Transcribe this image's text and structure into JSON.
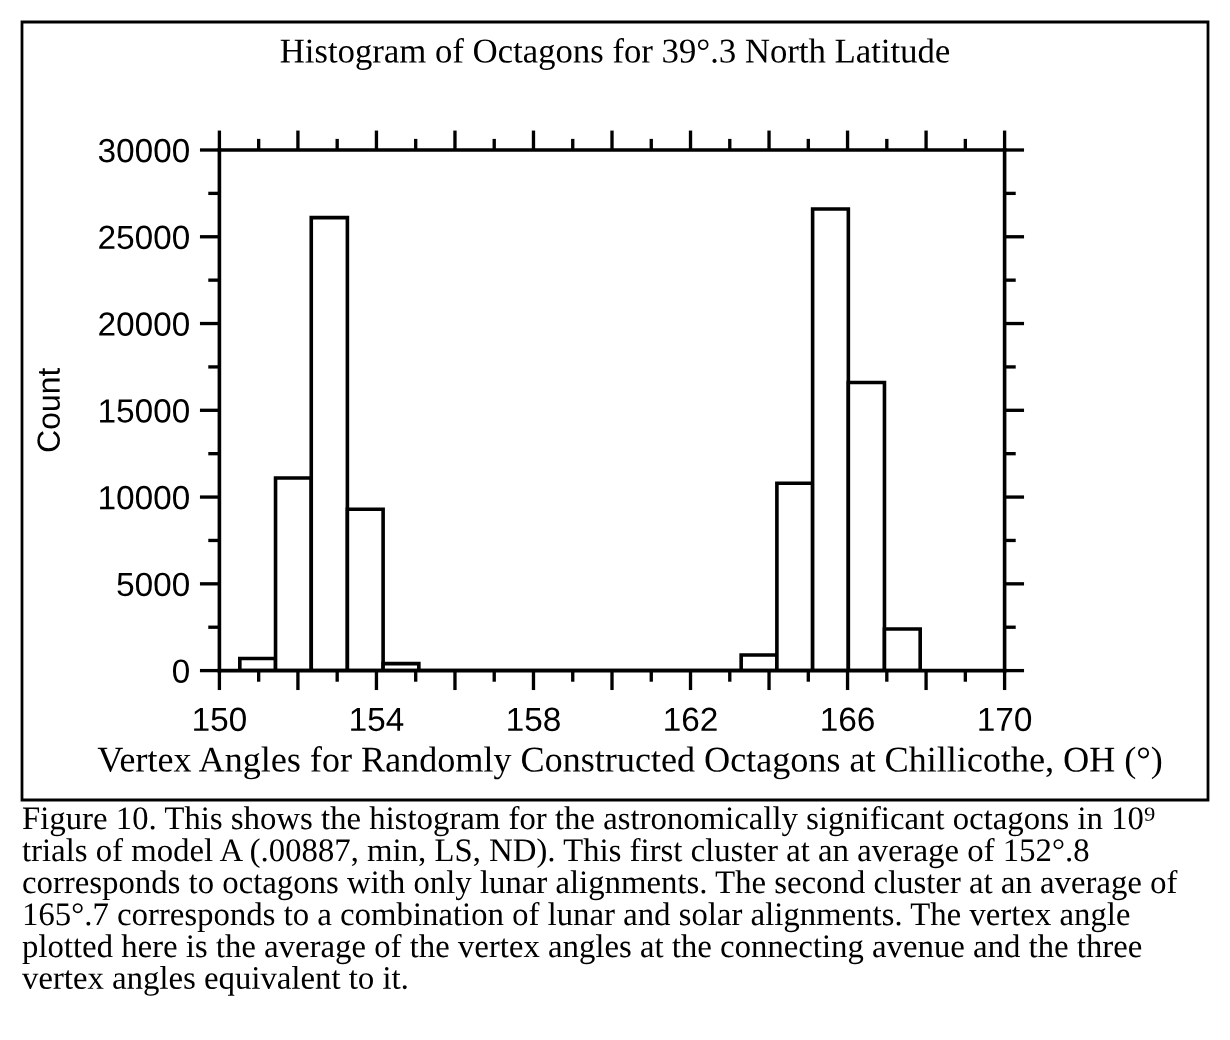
{
  "chart_data": {
    "type": "histogram",
    "title": "Histogram of Octagons for 39°.3 North Latitude",
    "xlabel": "Vertex Angles for Randomly Constructed Octagons at Chillicothe, OH (°)",
    "ylabel": "Count",
    "bins": [
      150.52,
      151.43,
      152.34,
      153.26,
      154.17,
      155.08,
      155.99,
      156.9,
      157.82,
      158.73,
      159.64,
      160.55,
      161.46,
      162.38,
      163.29,
      164.2,
      165.11,
      166.02,
      166.94,
      167.85
    ],
    "values": [
      700,
      11100,
      26100,
      9300,
      400,
      0,
      0,
      0,
      0,
      0,
      0,
      0,
      0,
      0,
      900,
      10800,
      26600,
      16600,
      2400
    ],
    "color": "#ffffff",
    "xlim": [
      150,
      170
    ],
    "xticks": [
      150,
      {
        "value": 152,
        "label": null
      },
      154,
      {
        "value": 156,
        "label": null
      },
      158,
      {
        "value": 160,
        "label": null
      },
      162,
      {
        "value": 164,
        "label": null
      },
      166,
      {
        "value": 168,
        "label": null
      },
      170
    ],
    "ylim": [
      0,
      30000
    ],
    "yticks": [
      0,
      5000,
      10000,
      15000,
      20000,
      25000,
      30000
    ],
    "annotations": [
      "Figure 10. This shows the histogram for the astronomically significant octagons in 10⁹ trials of model A (.00887, min, LS, ND). This first cluster at an average of 152°.8 corresponds to octagons with only lunar alignments. The second cluster at an average of 165°.7 corresponds to a combination of lunar and solar alignments. The vertex angle plotted here is the average of the vertex angles at the connecting avenue and the three vertex angles equivalent to it."
    ]
  }
}
